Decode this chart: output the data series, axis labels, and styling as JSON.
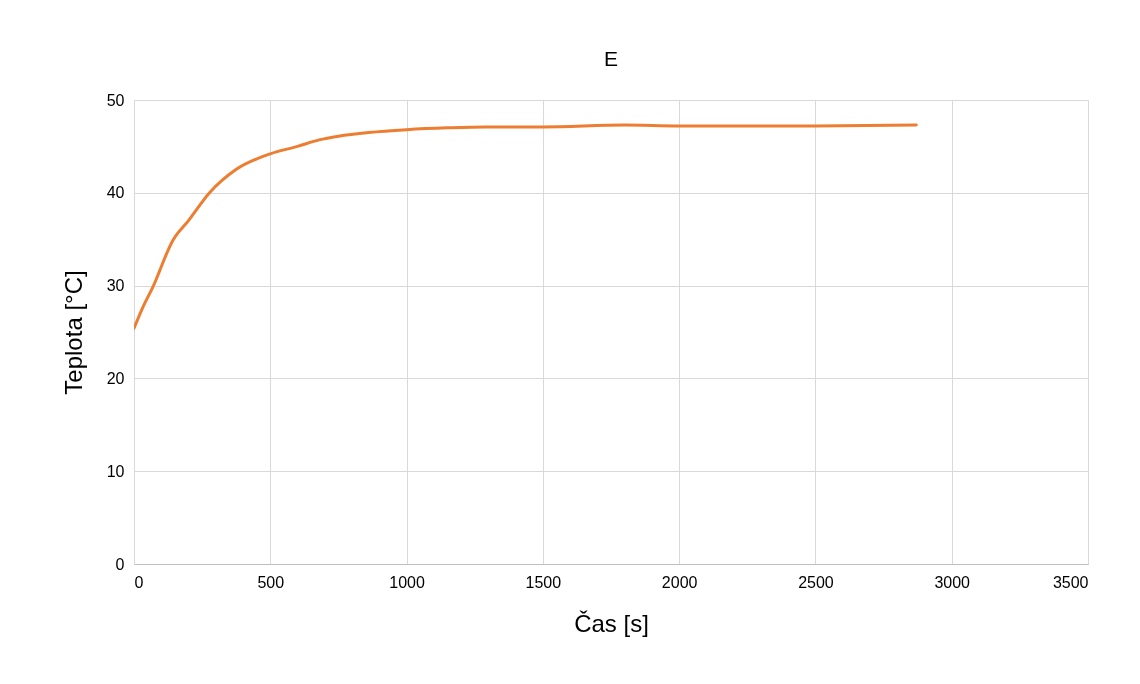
{
  "chart_data": {
    "type": "line",
    "title": "E",
    "xlabel": "Čas [s]",
    "ylabel": "Teplota [°C]",
    "x": [
      0,
      30,
      70,
      143,
      200,
      277,
      374,
      500,
      600,
      679,
      750,
      862,
      1000,
      1150,
      1289,
      1500,
      1800,
      2000,
      2500,
      2870
    ],
    "series": [
      {
        "color": "#ed7d31",
        "values": [
          25.4,
          27.5,
          29.9,
          34.9,
          37.0,
          40.0,
          42.5,
          44.2,
          45.0,
          45.7,
          46.1,
          46.5,
          46.8,
          47.0,
          47.1,
          47.1,
          47.3,
          47.2,
          47.2,
          47.3
        ]
      }
    ],
    "xlim": [
      0,
      3500
    ],
    "xticks": [
      0,
      500,
      1000,
      1500,
      2000,
      2500,
      3000,
      3500
    ],
    "ylim": [
      0,
      50
    ],
    "yticks": [
      0,
      10,
      20,
      30,
      40,
      50
    ],
    "grid": true,
    "marker": "none",
    "line_style": "solid"
  }
}
